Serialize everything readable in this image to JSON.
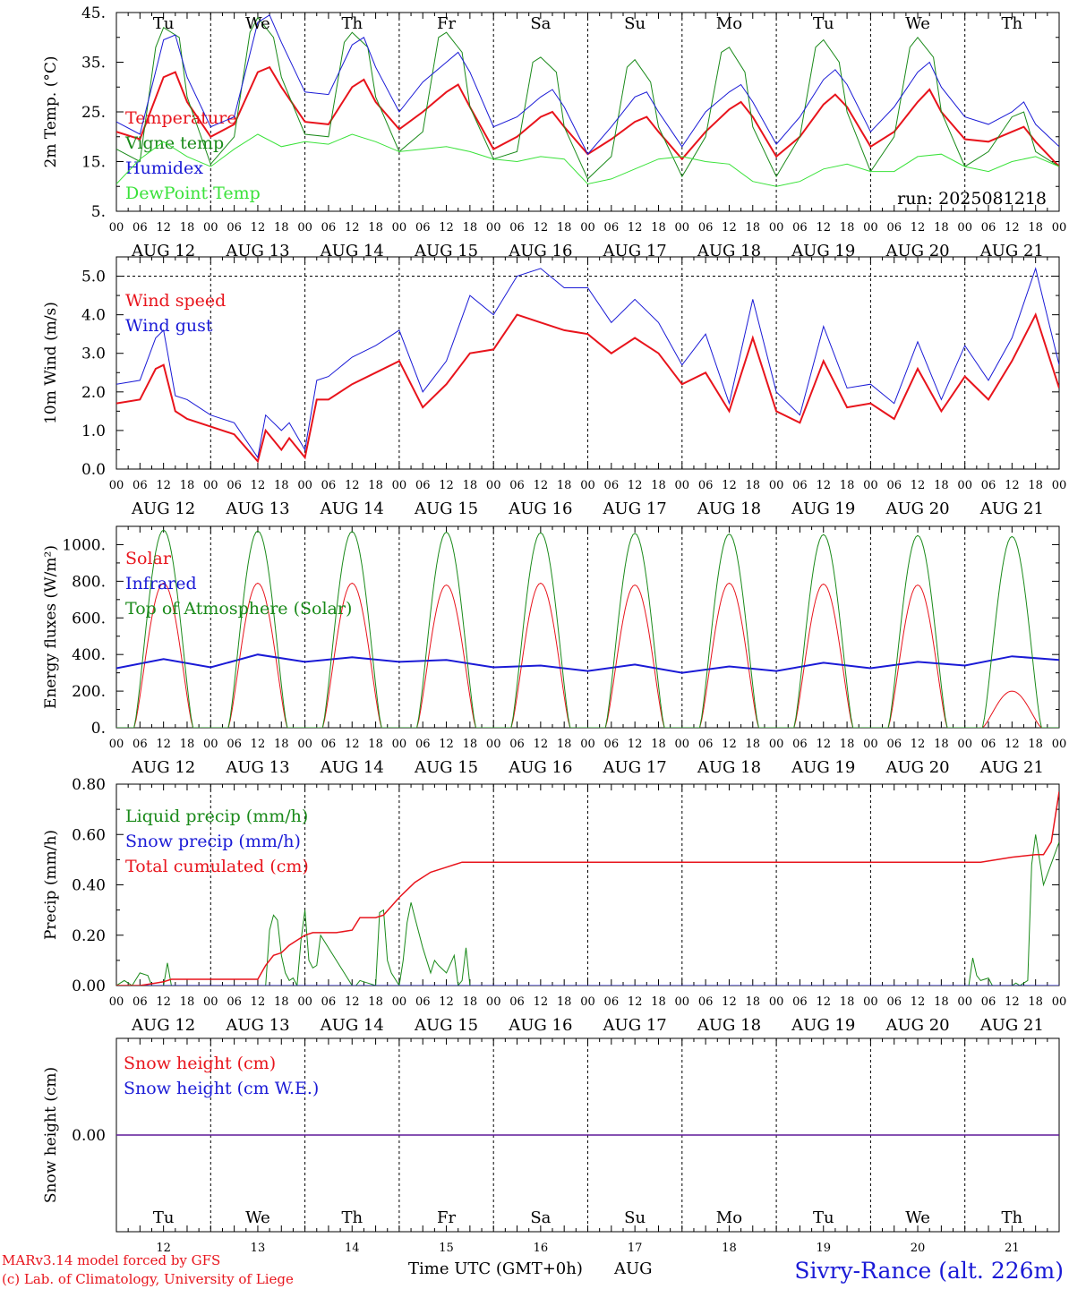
{
  "colors": {
    "red": "#e8141c",
    "green": "#1a8a1a",
    "blue": "#1a1ad6",
    "lightgreen": "#3ae23a"
  },
  "weekdays": [
    "Tu",
    "We",
    "Th",
    "Fr",
    "Sa",
    "Su",
    "Mo",
    "Tu",
    "We",
    "Th"
  ],
  "weekday_colors": [
    "#000",
    "#000",
    "#000",
    "#000",
    "#e8141c",
    "#e8141c",
    "#000",
    "#000",
    "#000",
    "#000"
  ],
  "hour_ticks": [
    "00",
    "06",
    "12",
    "18"
  ],
  "hour_end": "00",
  "date_labels": [
    "AUG 12",
    "AUG 13",
    "AUG 14",
    "AUG 15",
    "AUG 16",
    "AUG 17",
    "AUG 18",
    "AUG 19",
    "AUG 20",
    "AUG 21"
  ],
  "bottom_day_numbers": [
    "12",
    "13",
    "14",
    "15",
    "16",
    "17",
    "18",
    "19",
    "20",
    "21"
  ],
  "footer": {
    "model": "MARv3.14 model forced by GFS",
    "lab": "(c) Lab. of Climatology, University of Liege",
    "xlabel": "Time UTC (GMT+0h)",
    "month": "AUG",
    "station": "Sivry-Rance (alt. 226m)"
  },
  "chart_data": [
    {
      "type": "line",
      "ylabel": "2m Temp. (°C)",
      "ylim": [
        5,
        45
      ],
      "ytick_values": [
        5,
        15,
        25,
        35,
        45
      ],
      "ytick_labels": [
        "5.",
        "15.",
        "25.",
        "35.",
        "45."
      ],
      "run_label": "run: 2025081218",
      "x_unit": "hours since 2025-08-12 00 UTC",
      "series": [
        {
          "name": "Temperature",
          "color": "#e8141c",
          "width": 2,
          "x": [
            0,
            6,
            12,
            15,
            18,
            24,
            30,
            36,
            39,
            42,
            48,
            54,
            60,
            63,
            66,
            72,
            78,
            84,
            87,
            90,
            96,
            102,
            108,
            111,
            114,
            120,
            126,
            132,
            135,
            138,
            144,
            150,
            156,
            159,
            162,
            168,
            174,
            180,
            183,
            186,
            192,
            198,
            204,
            207,
            210,
            216,
            222,
            228,
            231,
            234,
            240
          ],
          "y": [
            21,
            19.5,
            32,
            33,
            27,
            20,
            22.5,
            33,
            34,
            30,
            23,
            22.5,
            30,
            31.5,
            27,
            21.5,
            25,
            29,
            30.5,
            26,
            17.5,
            20,
            24,
            25,
            22,
            16.5,
            19.5,
            23,
            24,
            21,
            15.5,
            21,
            25.5,
            27,
            24,
            16,
            20,
            26.5,
            28.5,
            26,
            18,
            21,
            27,
            29.5,
            25,
            19.5,
            19,
            21,
            22,
            19,
            14
          ]
        },
        {
          "name": "Vigne temp",
          "color": "#1a8a1a",
          "width": 1,
          "x": [
            0,
            6,
            10,
            12,
            16,
            18,
            24,
            30,
            34,
            36,
            40,
            42,
            48,
            54,
            58,
            60,
            64,
            66,
            72,
            78,
            82,
            84,
            88,
            90,
            96,
            102,
            106,
            108,
            112,
            114,
            120,
            126,
            130,
            132,
            136,
            138,
            144,
            150,
            154,
            156,
            160,
            162,
            168,
            174,
            178,
            180,
            184,
            186,
            192,
            198,
            202,
            204,
            208,
            210,
            216,
            222,
            228,
            231,
            234,
            240
          ],
          "y": [
            17.5,
            15,
            38,
            42,
            40,
            28,
            14.5,
            20,
            41,
            44,
            40,
            32,
            20.5,
            20,
            39,
            41,
            38,
            28,
            17,
            21,
            40,
            41,
            37,
            26,
            15.5,
            17,
            35,
            36,
            33,
            22,
            11.5,
            16,
            34,
            35.5,
            31,
            22,
            12,
            20,
            37,
            38,
            33,
            22,
            12,
            20,
            38,
            39.5,
            35,
            25,
            13,
            20,
            38,
            40,
            36,
            25,
            14,
            17,
            24,
            25,
            17,
            14
          ]
        },
        {
          "name": "Humidex",
          "color": "#1a1ad6",
          "width": 1,
          "x": [
            0,
            6,
            12,
            15,
            18,
            24,
            30,
            36,
            39,
            42,
            48,
            54,
            60,
            63,
            66,
            72,
            78,
            84,
            87,
            90,
            96,
            102,
            108,
            111,
            114,
            120,
            126,
            132,
            135,
            138,
            144,
            150,
            156,
            159,
            162,
            168,
            174,
            180,
            183,
            186,
            192,
            198,
            204,
            207,
            210,
            216,
            222,
            228,
            231,
            234,
            240
          ],
          "y": [
            23,
            20.5,
            39.5,
            40.5,
            32,
            22,
            24,
            43,
            44.5,
            39,
            29,
            28.5,
            38.5,
            40,
            34,
            25,
            31,
            35,
            37,
            33,
            22,
            24,
            28,
            29.5,
            26,
            16.5,
            22,
            28,
            29,
            25,
            18,
            25,
            29,
            30.5,
            27,
            18.5,
            24,
            31.5,
            33.5,
            30.5,
            21,
            26,
            33,
            35,
            30,
            24,
            22.5,
            25,
            27,
            22.5,
            18
          ]
        },
        {
          "name": "DewPoint Temp",
          "color": "#3ae23a",
          "width": 1,
          "x": [
            0,
            6,
            12,
            18,
            24,
            30,
            36,
            42,
            48,
            54,
            60,
            66,
            72,
            78,
            84,
            90,
            96,
            102,
            108,
            114,
            120,
            126,
            132,
            138,
            144,
            150,
            156,
            162,
            168,
            174,
            180,
            186,
            192,
            198,
            204,
            210,
            216,
            222,
            228,
            234,
            240
          ],
          "y": [
            10.5,
            15.5,
            19,
            16,
            14,
            17.5,
            20.5,
            18,
            19,
            18.5,
            20.5,
            19,
            17,
            17.5,
            18,
            17,
            15.5,
            15,
            16,
            15.5,
            10.5,
            11.5,
            13.5,
            15.5,
            16,
            15,
            14.5,
            11,
            10,
            11,
            13.5,
            14.5,
            13,
            13,
            16,
            16.5,
            14,
            13,
            15,
            16,
            14
          ]
        }
      ]
    },
    {
      "type": "line",
      "ylabel": "10m Wind (m/s)",
      "ylim": [
        0,
        5.5
      ],
      "ytick_values": [
        0,
        1,
        2,
        3,
        4,
        5
      ],
      "ytick_labels": [
        "0.0",
        "1.0",
        "2.0",
        "3.0",
        "4.0",
        "5.0"
      ],
      "refline": 5.0,
      "series": [
        {
          "name": "Wind speed",
          "color": "#e8141c",
          "width": 2,
          "x": [
            0,
            6,
            10,
            12,
            15,
            18,
            24,
            30,
            36,
            38,
            42,
            44,
            48,
            51,
            54,
            60,
            66,
            72,
            78,
            84,
            90,
            96,
            102,
            108,
            114,
            120,
            126,
            132,
            138,
            144,
            150,
            156,
            162,
            168,
            174,
            180,
            186,
            192,
            198,
            204,
            210,
            216,
            222,
            228,
            234,
            240
          ],
          "y": [
            1.7,
            1.8,
            2.6,
            2.7,
            1.5,
            1.3,
            1.1,
            0.9,
            0.2,
            1.0,
            0.5,
            0.8,
            0.3,
            1.8,
            1.8,
            2.2,
            2.5,
            2.8,
            1.6,
            2.2,
            3.0,
            3.1,
            4.0,
            3.8,
            3.6,
            3.5,
            3.0,
            3.4,
            3.0,
            2.2,
            2.5,
            1.5,
            3.4,
            1.5,
            1.2,
            2.8,
            1.6,
            1.7,
            1.3,
            2.6,
            1.5,
            2.4,
            1.8,
            2.8,
            4.0,
            2.1
          ]
        },
        {
          "name": "Wind gust",
          "color": "#1a1ad6",
          "width": 1,
          "x": [
            0,
            6,
            10,
            12,
            15,
            18,
            24,
            30,
            36,
            38,
            42,
            44,
            48,
            51,
            54,
            60,
            66,
            72,
            78,
            84,
            90,
            96,
            102,
            108,
            114,
            120,
            126,
            132,
            138,
            144,
            150,
            156,
            162,
            168,
            174,
            180,
            186,
            192,
            198,
            204,
            210,
            216,
            222,
            228,
            234,
            240
          ],
          "y": [
            2.2,
            2.3,
            3.4,
            3.6,
            1.9,
            1.8,
            1.4,
            1.2,
            0.3,
            1.4,
            1.0,
            1.2,
            0.5,
            2.3,
            2.4,
            2.9,
            3.2,
            3.6,
            2.0,
            2.8,
            4.5,
            4.0,
            5.0,
            5.2,
            4.7,
            4.7,
            3.8,
            4.4,
            3.8,
            2.7,
            3.5,
            1.7,
            4.4,
            2.0,
            1.4,
            3.7,
            2.1,
            2.2,
            1.7,
            3.3,
            1.8,
            3.2,
            2.3,
            3.4,
            5.2,
            2.7
          ]
        }
      ]
    },
    {
      "type": "line",
      "ylabel": "Energy fluxes (W/m²)",
      "ylim": [
        0,
        1100
      ],
      "ytick_values": [
        0,
        200,
        400,
        600,
        800,
        1000
      ],
      "ytick_labels": [
        "0.",
        "200.",
        "400.",
        "600.",
        "800.",
        "1000."
      ],
      "series": [
        {
          "name": "Solar",
          "color": "#e8141c",
          "width": 1,
          "model": "diurnal",
          "peaks": [
            790,
            790,
            790,
            780,
            790,
            780,
            790,
            785,
            780,
            200
          ]
        },
        {
          "name": "Infrared",
          "color": "#1a1ad6",
          "width": 2,
          "x": [
            0,
            12,
            24,
            36,
            48,
            60,
            72,
            84,
            96,
            108,
            120,
            132,
            144,
            156,
            168,
            180,
            192,
            204,
            216,
            228,
            240
          ],
          "y": [
            325,
            375,
            330,
            400,
            360,
            385,
            360,
            370,
            330,
            340,
            310,
            345,
            300,
            335,
            310,
            355,
            325,
            360,
            340,
            390,
            370
          ]
        },
        {
          "name": "Top of Atmosphere (Solar)",
          "color": "#1a8a1a",
          "width": 1,
          "model": "diurnal",
          "peaks": [
            1080,
            1075,
            1072,
            1068,
            1065,
            1062,
            1058,
            1055,
            1050,
            1045
          ]
        }
      ]
    },
    {
      "type": "line",
      "ylabel": "Precip (mm/h)",
      "ylim": [
        0,
        0.8
      ],
      "ytick_values": [
        0,
        0.2,
        0.4,
        0.6,
        0.8
      ],
      "ytick_labels": [
        "0.00",
        "0.20",
        "0.40",
        "0.60",
        "0.80"
      ],
      "series": [
        {
          "name": "Liquid precip (mm/h)",
          "color": "#1a8a1a",
          "width": 1,
          "x": [
            0,
            2,
            4,
            6,
            8,
            9,
            10,
            12,
            13,
            14,
            38,
            39,
            40,
            41,
            42,
            43,
            44,
            45,
            46,
            47,
            48,
            49,
            50,
            51,
            52,
            60,
            61,
            62,
            64,
            66,
            67,
            68,
            69,
            70,
            72,
            73,
            74,
            75,
            76,
            78,
            80,
            81,
            82,
            84,
            86,
            87,
            88,
            89,
            90,
            217,
            218,
            219,
            220,
            222,
            223,
            228,
            229,
            230,
            232,
            233,
            234,
            236,
            240
          ],
          "y": [
            0,
            0.02,
            0,
            0.05,
            0.04,
            0,
            0,
            0,
            0.09,
            0,
            0,
            0.22,
            0.28,
            0.26,
            0.12,
            0.05,
            0.02,
            0.03,
            0,
            0.18,
            0.3,
            0.1,
            0.07,
            0.08,
            0.2,
            0,
            0,
            0.02,
            0.01,
            0,
            0.29,
            0.3,
            0.1,
            0.05,
            0,
            0.1,
            0.25,
            0.33,
            0.27,
            0.15,
            0.05,
            0.1,
            0.08,
            0.05,
            0.12,
            0,
            0.02,
            0.15,
            0,
            0,
            0.11,
            0.04,
            0.02,
            0.03,
            0,
            0,
            0.01,
            0,
            0.02,
            0.48,
            0.6,
            0.4,
            0.57
          ]
        },
        {
          "name": "Snow precip (mm/h)",
          "color": "#1a1ad6",
          "width": 1,
          "x": [
            0,
            240
          ],
          "y": [
            0,
            0
          ]
        },
        {
          "name": "Total cumulated (cm)",
          "color": "#e8141c",
          "width": 1.5,
          "x": [
            0,
            6,
            10,
            12,
            14,
            36,
            38,
            40,
            42,
            44,
            46,
            48,
            50,
            52,
            56,
            60,
            62,
            66,
            68,
            72,
            74,
            76,
            80,
            84,
            88,
            96,
            200,
            220,
            228,
            234,
            236,
            238,
            240
          ],
          "y": [
            0,
            0,
            0.01,
            0.015,
            0.025,
            0.025,
            0.08,
            0.12,
            0.13,
            0.16,
            0.18,
            0.2,
            0.21,
            0.21,
            0.21,
            0.22,
            0.27,
            0.27,
            0.28,
            0.35,
            0.38,
            0.41,
            0.45,
            0.47,
            0.49,
            0.49,
            0.49,
            0.49,
            0.51,
            0.52,
            0.52,
            0.57,
            0.77
          ]
        }
      ]
    },
    {
      "type": "line",
      "ylabel": "Snow height (cm)",
      "ylim": [
        -1,
        1
      ],
      "ytick_values": [
        0
      ],
      "ytick_labels": [
        "0.00"
      ],
      "series": [
        {
          "name": "Snow height (cm)",
          "color": "#e8141c",
          "width": 1.5,
          "x": [
            0,
            240
          ],
          "y": [
            0,
            0
          ]
        },
        {
          "name": "Snow height (cm W.E.)",
          "color": "#1a1ad6",
          "width": 1,
          "x": [
            0,
            240
          ],
          "y": [
            0,
            0
          ]
        }
      ]
    }
  ]
}
